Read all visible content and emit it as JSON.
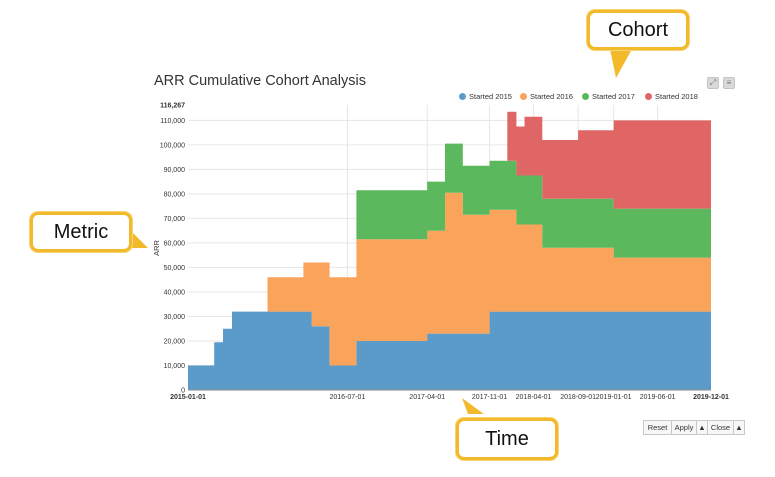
{
  "title": "ARR Cumulative Cohort Analysis",
  "tools": {
    "expand_icon": "expand-icon",
    "menu_icon": "menu-icon"
  },
  "controls": {
    "reset": "Reset",
    "apply": "Apply",
    "up1": "▲",
    "close": "Close",
    "up2": "▲"
  },
  "callouts": {
    "cohort": "Cohort",
    "metric": "Metric",
    "time": "Time"
  },
  "colors": {
    "accent": "#f2b92a"
  },
  "chart_data": {
    "type": "area",
    "stacked": true,
    "ylabel": "ARR",
    "xlabel": "",
    "ylim": [
      0,
      116267
    ],
    "yticks": [
      0,
      10000,
      20000,
      30000,
      40000,
      50000,
      60000,
      70000,
      80000,
      90000,
      100000,
      110000,
      116267
    ],
    "ytick_labels": [
      "0",
      "10,000",
      "20,000",
      "30,000",
      "40,000",
      "50,000",
      "60,000",
      "70,000",
      "80,000",
      "90,000",
      "100,000",
      "110,000",
      "116,267"
    ],
    "xlim": [
      "2015-01-01",
      "2019-12-01"
    ],
    "xticks": [
      "2015-01-01",
      "2016-07-01",
      "2017-04-01",
      "2017-11-01",
      "2018-04-01",
      "2018-09-01",
      "2019-01-01",
      "2019-06-01",
      "2019-12-01"
    ],
    "grid": true,
    "legend_position": "top-right",
    "steps": [
      "2015-01-01",
      "2015-04-01",
      "2015-05-01",
      "2015-06-01",
      "2015-07-01",
      "2015-08-01",
      "2015-09-01",
      "2015-10-01",
      "2016-01-01",
      "2016-02-01",
      "2016-03-01",
      "2016-04-01",
      "2016-05-01",
      "2016-07-01",
      "2016-08-01",
      "2016-09-01",
      "2016-10-01",
      "2016-11-01",
      "2016-12-01",
      "2017-03-01",
      "2017-04-01",
      "2017-05-01",
      "2017-06-01",
      "2017-07-01",
      "2017-08-01",
      "2017-09-01",
      "2017-10-01",
      "2017-11-01",
      "2017-12-01",
      "2018-01-01",
      "2018-02-01",
      "2018-03-01",
      "2018-04-01",
      "2018-05-01",
      "2018-06-01",
      "2018-07-01",
      "2018-08-01",
      "2018-09-01",
      "2018-10-01",
      "2018-11-01",
      "2018-12-01",
      "2019-01-01",
      "2019-02-01",
      "2019-03-01",
      "2019-04-01",
      "2019-05-01",
      "2019-06-01",
      "2019-07-01",
      "2019-08-01",
      "2019-09-01",
      "2019-10-01",
      "2019-11-01",
      "2019-12-01"
    ],
    "series": [
      {
        "name": "Started 2015",
        "color": "#5b9bc9",
        "values": [
          10000,
          19500,
          25000,
          32000,
          32000,
          32000,
          32000,
          32000,
          32000,
          32000,
          26000,
          26000,
          10000,
          10000,
          20000,
          20000,
          20000,
          20000,
          20000,
          20000,
          23000,
          23000,
          23000,
          23000,
          23000,
          23000,
          23000,
          32000,
          32000,
          32000,
          32000,
          32000,
          32000,
          32000,
          32000,
          32000,
          32000,
          32000,
          32000,
          32000,
          32000,
          32000,
          32000,
          32000,
          32000,
          32000,
          32000,
          32000,
          32000,
          32000,
          32000,
          32000,
          32000
        ]
      },
      {
        "name": "Started 2016",
        "color": "#f9a35b",
        "values": [
          0,
          0,
          0,
          0,
          0,
          0,
          0,
          14000,
          14000,
          20000,
          26000,
          26000,
          36000,
          36000,
          41500,
          41500,
          41500,
          41500,
          41500,
          41500,
          42000,
          42000,
          57500,
          57500,
          48500,
          48500,
          48500,
          41500,
          41500,
          41500,
          35500,
          35500,
          35500,
          26000,
          26000,
          26000,
          26000,
          26000,
          26000,
          26000,
          26000,
          22000,
          22000,
          22000,
          22000,
          22000,
          22000,
          22000,
          22000,
          22000,
          22000,
          22000,
          22000
        ]
      },
      {
        "name": "Started 2017",
        "color": "#5cb85c",
        "values": [
          0,
          0,
          0,
          0,
          0,
          0,
          0,
          0,
          0,
          0,
          0,
          0,
          0,
          0,
          20000,
          20000,
          20000,
          20000,
          20000,
          20000,
          20000,
          20000,
          20000,
          20000,
          20000,
          20000,
          20000,
          20000,
          20000,
          20000,
          20000,
          20000,
          20000,
          20000,
          20000,
          20000,
          20000,
          20000,
          20000,
          20000,
          20000,
          20000,
          20000,
          20000,
          20000,
          20000,
          20000,
          20000,
          20000,
          20000,
          20000,
          20000,
          20000
        ]
      },
      {
        "name": "Started 2018",
        "color": "#e06666",
        "values": [
          0,
          0,
          0,
          0,
          0,
          0,
          0,
          0,
          0,
          0,
          0,
          0,
          0,
          0,
          0,
          0,
          0,
          0,
          0,
          0,
          0,
          0,
          0,
          0,
          0,
          0,
          0,
          0,
          0,
          20000,
          20000,
          24000,
          24000,
          24000,
          24000,
          24000,
          24000,
          28000,
          28000,
          28000,
          28000,
          36000,
          36000,
          36000,
          36000,
          36000,
          36000,
          36000,
          36000,
          36000,
          36000,
          36000,
          36000
        ]
      }
    ]
  }
}
